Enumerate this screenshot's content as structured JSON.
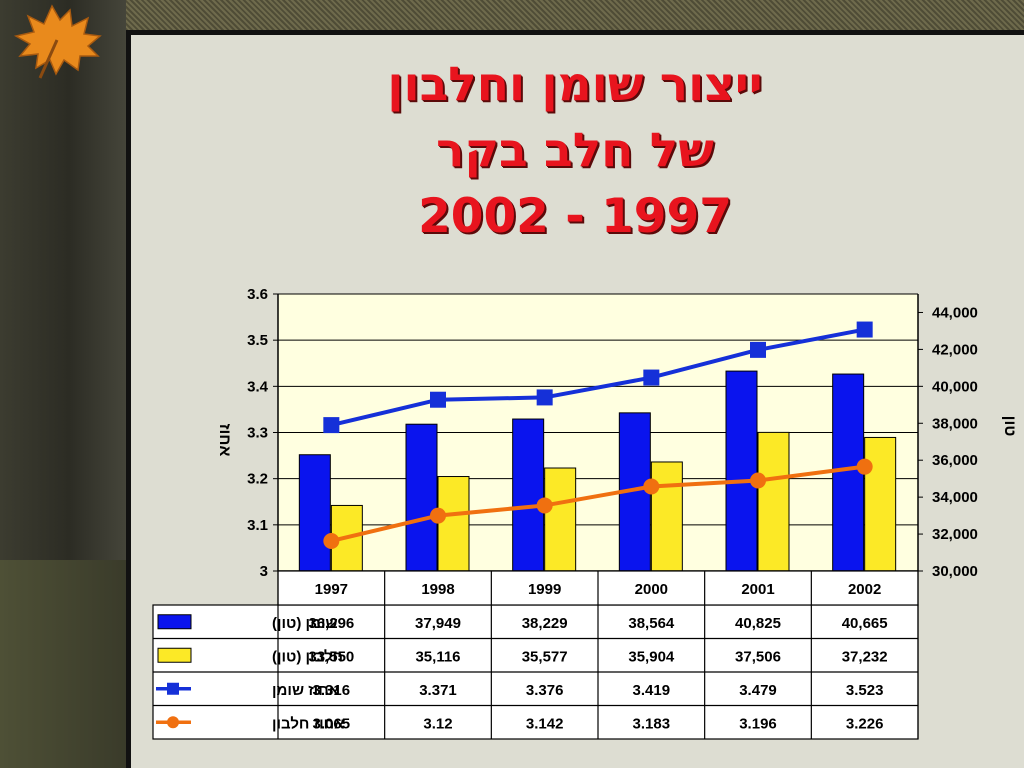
{
  "title": {
    "line1": "ייצור שומן וחלבון",
    "line2": "של חלב בקר",
    "line3": "2002 - 1997"
  },
  "colors": {
    "fat_bar": "#0a14ee",
    "protein_bar": "#fce926",
    "fat_line": "#1530d8",
    "protein_line": "#f07010",
    "plot_bg": "#ffffe0"
  },
  "chart_data": {
    "type": "bar",
    "categories": [
      "1997",
      "1998",
      "1999",
      "2000",
      "2001",
      "2002"
    ],
    "y_left": {
      "label": "אחוז",
      "ylim": [
        3,
        3.6
      ],
      "ticks": [
        "3",
        "3.1",
        "3.2",
        "3.3",
        "3.4",
        "3.5",
        "3.6"
      ]
    },
    "y_right": {
      "label": "טון",
      "ylim": [
        30000,
        45000
      ],
      "ticks": [
        "30,000",
        "32,000",
        "34,000",
        "36,000",
        "38,000",
        "40,000",
        "42,000",
        "44,000"
      ]
    },
    "grid": true,
    "legend": "data-table",
    "series": [
      {
        "name": "שומן (טון)",
        "kind": "bar",
        "axis": "right",
        "values": [
          36296,
          37949,
          38229,
          38564,
          40825,
          40665
        ],
        "labels": [
          "36,296",
          "37,949",
          "38,229",
          "38,564",
          "40,825",
          "40,665"
        ]
      },
      {
        "name": "חלבון (טון)",
        "kind": "bar",
        "axis": "right",
        "values": [
          33550,
          35116,
          35577,
          35904,
          37506,
          37232
        ],
        "labels": [
          "33,550",
          "35,116",
          "35,577",
          "35,904",
          "37,506",
          "37,232"
        ]
      },
      {
        "name": "אחוז שומן",
        "kind": "line",
        "axis": "left",
        "values": [
          3.316,
          3.371,
          3.376,
          3.419,
          3.479,
          3.523
        ],
        "labels": [
          "3.316",
          "3.371",
          "3.376",
          "3.419",
          "3.479",
          "3.523"
        ]
      },
      {
        "name": "אחוז חלבון",
        "kind": "line",
        "axis": "left",
        "values": [
          3.065,
          3.12,
          3.142,
          3.183,
          3.196,
          3.226
        ],
        "labels": [
          "3.065",
          "3.12",
          "3.142",
          "3.183",
          "3.196",
          "3.226"
        ]
      }
    ]
  }
}
